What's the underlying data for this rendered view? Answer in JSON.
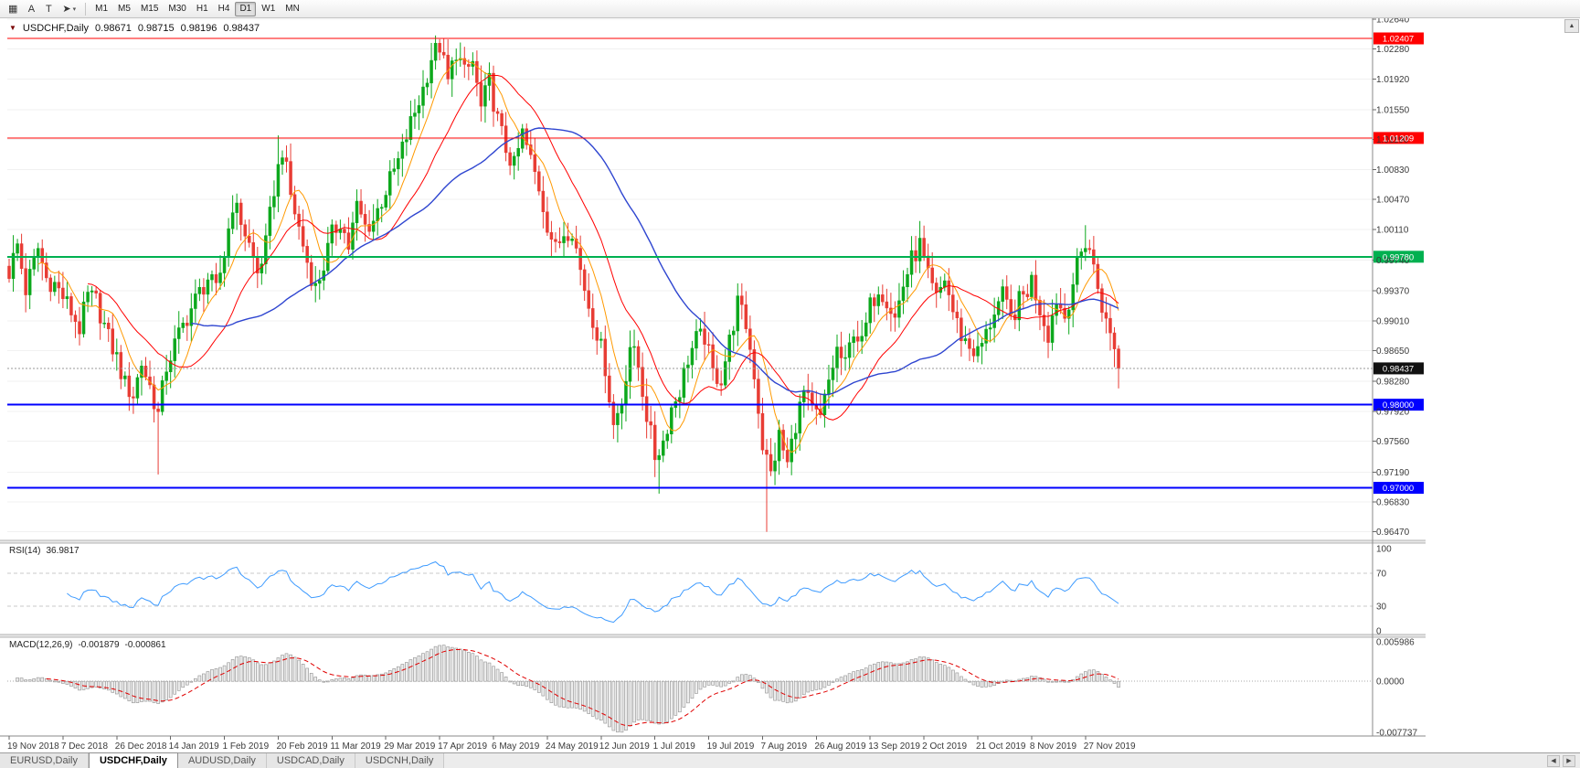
{
  "toolbar": {
    "tools": [
      {
        "name": "grid-tool",
        "glyph": "▦"
      },
      {
        "name": "text-label-tool",
        "glyph": "A"
      },
      {
        "name": "text-tool",
        "glyph": "T"
      },
      {
        "name": "cursor-tool",
        "glyph": "➤",
        "caret": "▾"
      }
    ],
    "timeframes": [
      "M1",
      "M5",
      "M15",
      "M30",
      "H1",
      "H4",
      "D1",
      "W1",
      "MN"
    ],
    "active_timeframe": "D1"
  },
  "chart_header": {
    "dropdown_icon": "▼",
    "symbol": "USDCHF,Daily",
    "open": "0.98671",
    "high": "0.98715",
    "low": "0.98196",
    "close": "0.98437"
  },
  "tabs": {
    "items": [
      "EURUSD,Daily",
      "USDCHF,Daily",
      "AUDUSD,Daily",
      "USDCAD,Daily",
      "USDCNH,Daily"
    ],
    "active_index": 1
  },
  "scroll": {
    "up_arrow": "▲",
    "tab_left": "◀",
    "tab_right": "▶"
  },
  "chart_data": {
    "type": "candlestick",
    "symbol": "USDCHF",
    "timeframe": "Daily",
    "bars": 269,
    "bar_label_interval": 13,
    "time_labels": [
      "19 Nov 2018",
      "7 Dec 2018",
      "26 Dec 2018",
      "14 Jan 2019",
      "1 Feb 2019",
      "20 Feb 2019",
      "11 Mar 2019",
      "29 Mar 2019",
      "17 Apr 2019",
      "6 May 2019",
      "24 May 2019",
      "12 Jun 2019",
      "1 Jul 2019",
      "19 Jul 2019",
      "7 Aug 2019",
      "26 Aug 2019",
      "13 Sep 2019",
      "2 Oct 2019",
      "21 Oct 2019",
      "8 Nov 2019",
      "27 Nov 2019"
    ],
    "price_axis_labels": [
      "1.02640",
      "1.02280",
      "1.01920",
      "1.01550",
      "1.01190",
      "1.00830",
      "1.00470",
      "1.00110",
      "0.99740",
      "0.99370",
      "0.99010",
      "0.98650",
      "0.98280",
      "0.97920",
      "0.97560",
      "0.97190",
      "0.96830",
      "0.96470"
    ],
    "price_range": {
      "top": 1.02649,
      "bottom": 0.96401
    },
    "last_bar": {
      "open": 0.98671,
      "high": 0.98715,
      "low": 0.98196,
      "close": 0.98437
    },
    "close_waypoints": [
      [
        0,
        0.996
      ],
      [
        2,
        0.9992
      ],
      [
        4,
        0.9938
      ],
      [
        7,
        0.9988
      ],
      [
        9,
        0.9952
      ],
      [
        11,
        0.9945
      ],
      [
        13,
        0.993
      ],
      [
        15,
        0.9912
      ],
      [
        17,
        0.9892
      ],
      [
        19,
        0.993
      ],
      [
        21,
        0.9925
      ],
      [
        24,
        0.988
      ],
      [
        26,
        0.9856
      ],
      [
        28,
        0.9824
      ],
      [
        30,
        0.9812
      ],
      [
        32,
        0.985
      ],
      [
        34,
        0.9822
      ],
      [
        36,
        0.9788
      ],
      [
        38,
        0.9846
      ],
      [
        40,
        0.9872
      ],
      [
        43,
        0.9906
      ],
      [
        46,
        0.9935
      ],
      [
        48,
        0.9952
      ],
      [
        50,
        0.9936
      ],
      [
        52,
        0.9982
      ],
      [
        54,
        1.0042
      ],
      [
        56,
        1.0022
      ],
      [
        58,
        0.9992
      ],
      [
        60,
        0.9958
      ],
      [
        62,
        0.9992
      ],
      [
        64,
        1.006
      ],
      [
        66,
        1.0108
      ],
      [
        68,
        1.0052
      ],
      [
        70,
        1.0012
      ],
      [
        72,
        0.9972
      ],
      [
        74,
        0.994
      ],
      [
        76,
        0.9968
      ],
      [
        78,
        1.0004
      ],
      [
        80,
        1.0022
      ],
      [
        82,
        0.999
      ],
      [
        84,
        1.0038
      ],
      [
        86,
        1.0014
      ],
      [
        88,
        1.0022
      ],
      [
        91,
        1.0058
      ],
      [
        94,
        1.0092
      ],
      [
        97,
        1.0138
      ],
      [
        100,
        1.018
      ],
      [
        102,
        1.0218
      ],
      [
        104,
        1.0232
      ],
      [
        106,
        1.0188
      ],
      [
        108,
        1.0226
      ],
      [
        110,
        1.0198
      ],
      [
        112,
        1.0212
      ],
      [
        114,
        1.0156
      ],
      [
        116,
        1.0188
      ],
      [
        118,
        1.0142
      ],
      [
        120,
        1.0108
      ],
      [
        122,
        1.0086
      ],
      [
        124,
        1.0126
      ],
      [
        126,
        1.0094
      ],
      [
        128,
        1.0062
      ],
      [
        130,
        1.0018
      ],
      [
        132,
        0.9986
      ],
      [
        134,
        1.0008
      ],
      [
        136,
        1.0012
      ],
      [
        138,
        0.9962
      ],
      [
        140,
        0.992
      ],
      [
        142,
        0.9888
      ],
      [
        144,
        0.9846
      ],
      [
        146,
        0.9775
      ],
      [
        148,
        0.9805
      ],
      [
        150,
        0.9872
      ],
      [
        152,
        0.9846
      ],
      [
        154,
        0.9788
      ],
      [
        156,
        0.9738
      ],
      [
        158,
        0.9756
      ],
      [
        160,
        0.9796
      ],
      [
        162,
        0.9818
      ],
      [
        164,
        0.9856
      ],
      [
        166,
        0.9878
      ],
      [
        168,
        0.9882
      ],
      [
        170,
        0.9838
      ],
      [
        172,
        0.9832
      ],
      [
        174,
        0.9876
      ],
      [
        176,
        0.9922
      ],
      [
        178,
        0.9896
      ],
      [
        180,
        0.9838
      ],
      [
        182,
        0.9752
      ],
      [
        184,
        0.9716
      ],
      [
        186,
        0.9762
      ],
      [
        188,
        0.9728
      ],
      [
        190,
        0.9778
      ],
      [
        192,
        0.9814
      ],
      [
        194,
        0.9792
      ],
      [
        196,
        0.9782
      ],
      [
        198,
        0.9828
      ],
      [
        200,
        0.9866
      ],
      [
        202,
        0.9846
      ],
      [
        204,
        0.9892
      ],
      [
        206,
        0.9872
      ],
      [
        208,
        0.9918
      ],
      [
        210,
        0.9942
      ],
      [
        212,
        0.9928
      ],
      [
        214,
        0.9904
      ],
      [
        216,
        0.9944
      ],
      [
        218,
        0.9974
      ],
      [
        220,
        0.9992
      ],
      [
        222,
        0.9952
      ],
      [
        224,
        0.9926
      ],
      [
        226,
        0.9952
      ],
      [
        228,
        0.9912
      ],
      [
        230,
        0.9884
      ],
      [
        232,
        0.987
      ],
      [
        234,
        0.9862
      ],
      [
        236,
        0.9884
      ],
      [
        238,
        0.9914
      ],
      [
        240,
        0.993
      ],
      [
        242,
        0.9902
      ],
      [
        244,
        0.9924
      ],
      [
        246,
        0.9938
      ],
      [
        247,
        0.995
      ],
      [
        249,
        0.9916
      ],
      [
        251,
        0.9886
      ],
      [
        253,
        0.9928
      ],
      [
        255,
        0.9906
      ],
      [
        257,
        0.9948
      ],
      [
        259,
        0.9982
      ],
      [
        260,
        0.9996
      ],
      [
        261,
        0.9988
      ],
      [
        262,
        0.9964
      ],
      [
        264,
        0.992
      ],
      [
        266,
        0.9886
      ],
      [
        267,
        0.98671
      ],
      [
        268,
        0.98437
      ]
    ],
    "spikes": {
      "36": {
        "low": 0.9716
      },
      "65": {
        "high": 1.0124
      },
      "104": {
        "high": 1.0238
      },
      "157": {
        "low": 0.9693
      },
      "176": {
        "high": 0.9946
      },
      "183": {
        "low": 0.9647
      },
      "220": {
        "high": 1.0021
      },
      "260": {
        "high": 1.0016
      }
    },
    "colors": {
      "up": "#0CA81C",
      "down": "#E83C34",
      "grid": "#f1f1f1",
      "axis_text": "#3a3a3a"
    },
    "moving_averages": [
      {
        "name": "ma-fast",
        "period": 8,
        "color": "#FF9900"
      },
      {
        "name": "ma-medium",
        "period": 20,
        "color": "#FF0000"
      },
      {
        "name": "ma-slow",
        "period": 45,
        "color": "#2E45D0"
      }
    ],
    "hlines": [
      {
        "label": "1.02407",
        "value": 1.02407,
        "color": "#FF0000",
        "width": 1
      },
      {
        "label": "1.01209",
        "value": 1.01209,
        "color": "#FF0000",
        "width": 1
      },
      {
        "label": "0.99780",
        "value": 0.9978,
        "color": "#00B050",
        "width": 2
      },
      {
        "label": "0.98000",
        "value": 0.98,
        "color": "#0000FF",
        "width": 2
      },
      {
        "label": "0.97000",
        "value": 0.97,
        "color": "#0000FF",
        "width": 2
      }
    ],
    "current_price": {
      "label": "0.98437",
      "value": 0.98437,
      "badge_color": "#111111"
    },
    "indicators": {
      "rsi": {
        "name": "RSI(14)",
        "value": "36.9817",
        "period": 14,
        "color": "#3E9BFF",
        "levels": [
          100,
          70,
          30,
          0
        ],
        "level_labels": [
          "100",
          "70",
          "30",
          "0"
        ]
      },
      "macd": {
        "name": "MACD(12,26,9)",
        "macd_value": "-0.001879",
        "signal_value": "-0.000861",
        "fast": 12,
        "slow": 26,
        "signal": 9,
        "axis_labels": [
          "0.005986",
          "0.0000",
          "-0.007737"
        ],
        "range": {
          "max": 0.005986,
          "min": -0.007737
        },
        "histogram_fill": "#ededed",
        "histogram_stroke": "#8f8f8f",
        "signal_color": "#E00000"
      }
    }
  }
}
